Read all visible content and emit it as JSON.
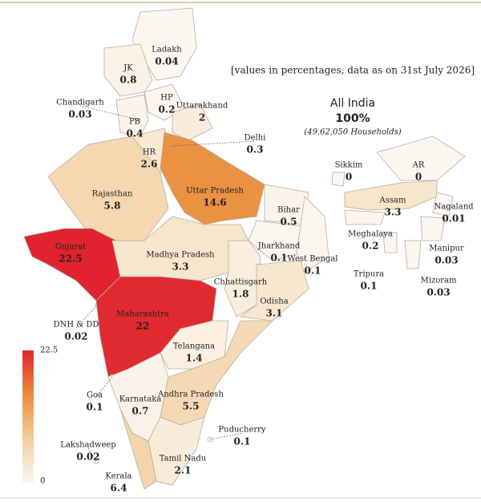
{
  "note": "[values in percentages, data as on 31st July 2026]",
  "total": {
    "label": "All India",
    "value": "100%",
    "households": "(49,62,050 Households)"
  },
  "legend": {
    "min": 0,
    "max": 22.5,
    "colors": [
      "#fbf6f0",
      "#f3cf9f",
      "#ea8d3d",
      "#e0232f"
    ]
  },
  "regions": [
    {
      "name": "Ladakh",
      "value": 0.04
    },
    {
      "name": "JK",
      "value": 0.8
    },
    {
      "name": "Chandigarh",
      "value": 0.03
    },
    {
      "name": "HP",
      "value": 0.2
    },
    {
      "name": "PB",
      "value": 0.4
    },
    {
      "name": "Uttarakhand",
      "value": 2
    },
    {
      "name": "Delhi",
      "value": 0.3
    },
    {
      "name": "HR",
      "value": 2.6
    },
    {
      "name": "Rajasthan",
      "value": 5.8
    },
    {
      "name": "Uttar Pradesh",
      "value": 14.6
    },
    {
      "name": "Bihar",
      "value": 0.5
    },
    {
      "name": "Gujarat",
      "value": 22.5
    },
    {
      "name": "Madhya Pradesh",
      "value": 3.3
    },
    {
      "name": "Jharkhand",
      "value": 0.1
    },
    {
      "name": "West Bengal",
      "value": 0.1
    },
    {
      "name": "Chhattisgarh",
      "value": 1.8
    },
    {
      "name": "Odisha",
      "value": 3.1
    },
    {
      "name": "DNH & DD",
      "value": 0.02
    },
    {
      "name": "Maharashtra",
      "value": 22
    },
    {
      "name": "Telangana",
      "value": 1.4
    },
    {
      "name": "Goa",
      "value": 0.1
    },
    {
      "name": "Karnataka",
      "value": 0.7
    },
    {
      "name": "Andhra Pradesh",
      "value": 5.5
    },
    {
      "name": "Puducherry",
      "value": 0.1
    },
    {
      "name": "Lakshadweep",
      "value": 0.02
    },
    {
      "name": "Tamil Nadu",
      "value": 2.1
    },
    {
      "name": "Kerala",
      "value": 6.4
    },
    {
      "name": "Sikkim",
      "value": 0
    },
    {
      "name": "AR",
      "value": 0
    },
    {
      "name": "Assam",
      "value": 3.3
    },
    {
      "name": "Nagaland",
      "value": 0.01
    },
    {
      "name": "Meghalaya",
      "value": 0.2
    },
    {
      "name": "Manipur",
      "value": 0.03
    },
    {
      "name": "Tripura",
      "value": 0.1
    },
    {
      "name": "Mizoram",
      "value": 0.03
    }
  ]
}
